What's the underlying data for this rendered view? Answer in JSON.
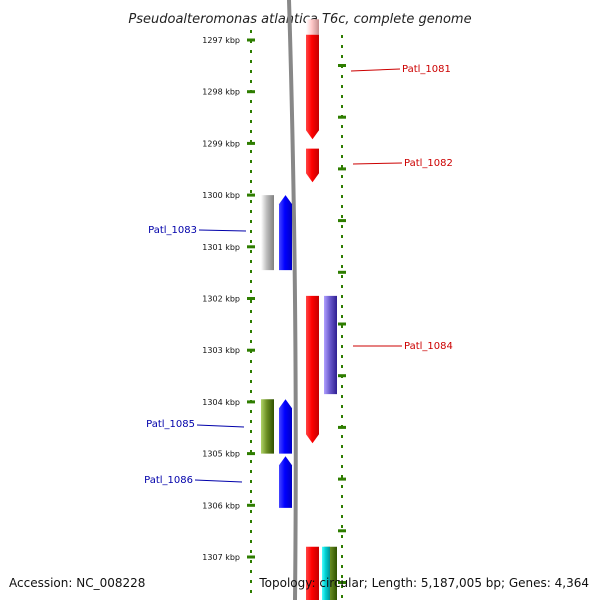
{
  "title": "Pseudoalteromonas atlantica T6c, complete genome",
  "footer": {
    "accession": "Accession: NC_008228",
    "topology": "Topology: circular; Length: 5,187,005 bp; Genes: 4,364"
  },
  "axis": {
    "ticks": [
      {
        "kbp": 1297,
        "label": "1297 kbp"
      },
      {
        "kbp": 1298,
        "label": "1298 kbp"
      },
      {
        "kbp": 1299,
        "label": "1299 kbp"
      },
      {
        "kbp": 1300,
        "label": "1300 kbp"
      },
      {
        "kbp": 1301,
        "label": "1301 kbp"
      },
      {
        "kbp": 1302,
        "label": "1302 kbp"
      },
      {
        "kbp": 1303,
        "label": "1303 kbp"
      },
      {
        "kbp": 1304,
        "label": "1304 kbp"
      },
      {
        "kbp": 1305,
        "label": "1305 kbp"
      },
      {
        "kbp": 1306,
        "label": "1306 kbp"
      },
      {
        "kbp": 1307,
        "label": "1307 kbp"
      }
    ]
  },
  "genes": [
    {
      "label": "",
      "strand": "+",
      "start_kbp": 1296.6,
      "end_kbp": 1296.9,
      "color": "#ffc8c8",
      "track": "plus-1"
    },
    {
      "label": "Patl_1081",
      "strand": "+",
      "start_kbp": 1296.9,
      "end_kbp": 1298.92,
      "color": "#ff0000",
      "label_color": "#cc0000",
      "track": "plus-1"
    },
    {
      "label": "Patl_1082",
      "strand": "+",
      "start_kbp": 1299.1,
      "end_kbp": 1299.75,
      "color": "#ff0000",
      "label_color": "#cc0000",
      "track": "plus-1"
    },
    {
      "label": "Patl_1083",
      "strand": "-",
      "start_kbp": 1300.0,
      "end_kbp": 1301.45,
      "color": "#0000ff",
      "label_color": "#0000aa",
      "track": "minus-1"
    },
    {
      "label": "",
      "strand": "-",
      "start_kbp": 1300.0,
      "end_kbp": 1301.45,
      "color": "#bbbbbb",
      "track": "minus-2"
    },
    {
      "label": "Patl_1084",
      "strand": "+",
      "start_kbp": 1301.95,
      "end_kbp": 1304.8,
      "color": "#ff0000",
      "label_color": "#cc0000",
      "track": "plus-1"
    },
    {
      "label": "",
      "strand": "+",
      "start_kbp": 1301.95,
      "end_kbp": 1303.85,
      "color": "#6a5acd",
      "track": "plus-2"
    },
    {
      "label": "Patl_1085",
      "strand": "-",
      "start_kbp": 1303.95,
      "end_kbp": 1305.0,
      "color": "#0000ff",
      "label_color": "#0000aa",
      "track": "minus-1"
    },
    {
      "label": "",
      "strand": "-",
      "start_kbp": 1303.95,
      "end_kbp": 1305.0,
      "color": "#6b8e23",
      "track": "minus-2"
    },
    {
      "label": "Patl_1086",
      "strand": "-",
      "start_kbp": 1305.05,
      "end_kbp": 1306.05,
      "color": "#0000ff",
      "label_color": "#0000aa",
      "track": "minus-1"
    },
    {
      "label": "",
      "strand": "+",
      "start_kbp": 1306.8,
      "end_kbp": 1307.9,
      "color": "#ff0000",
      "track": "plus-1"
    },
    {
      "label": "",
      "strand": "+",
      "start_kbp": 1306.8,
      "end_kbp": 1307.9,
      "color": "#6b8e23",
      "track": "plus-2"
    },
    {
      "label": "",
      "strand": "+",
      "start_kbp": 1306.8,
      "end_kbp": 1307.9,
      "color": "#00ced1",
      "track": "plus-3"
    }
  ],
  "colors": {
    "backbone": "#888888",
    "tick": "#2e7d00",
    "plus_label": "#cc0000",
    "minus_label": "#0000aa"
  }
}
